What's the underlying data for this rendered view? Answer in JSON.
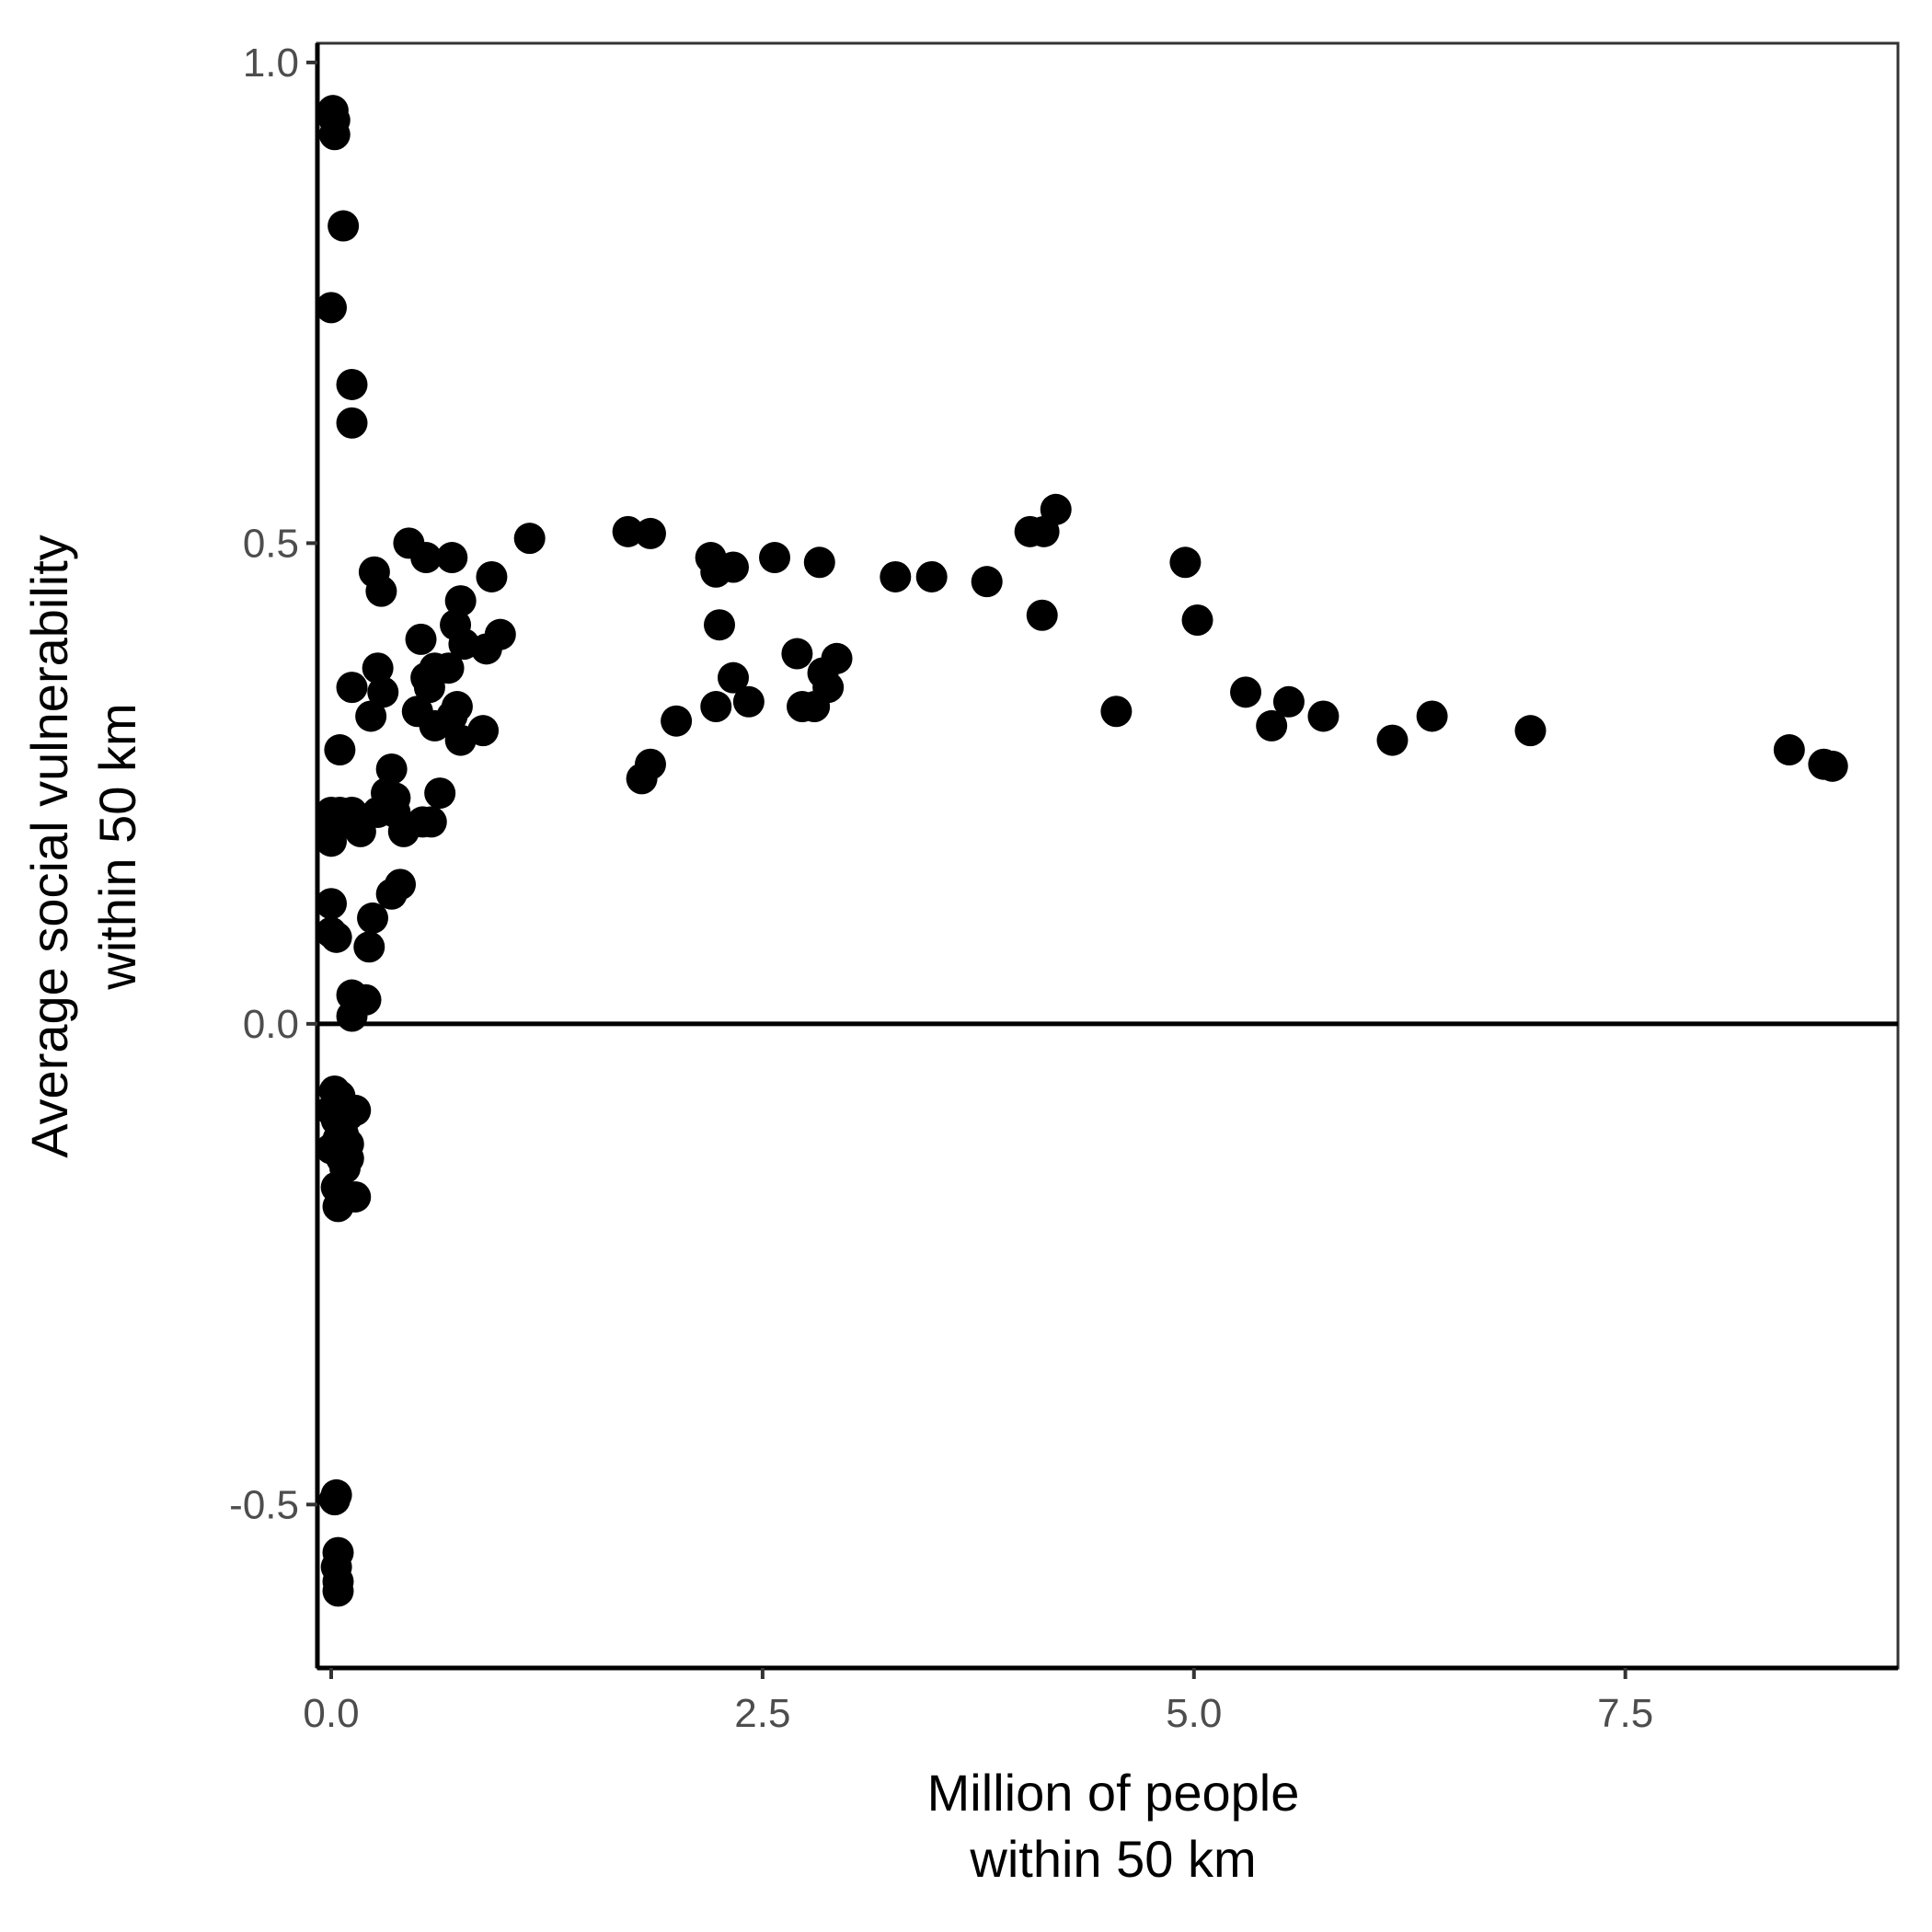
{
  "chart_data": {
    "type": "scatter",
    "title": "",
    "xlabel": [
      "Million of people",
      "within 50 km"
    ],
    "ylabel": [
      "Average social vulnerability",
      "within 50 km"
    ],
    "xlim": [
      -0.08,
      9.08
    ],
    "ylim": [
      -0.67,
      1.02
    ],
    "x_ticks": [
      0.0,
      2.5,
      5.0,
      7.5
    ],
    "x_tick_labels": [
      "0.0",
      "2.5",
      "5.0",
      "7.5"
    ],
    "y_ticks": [
      -0.5,
      0.0,
      0.5,
      1.0
    ],
    "y_tick_labels": [
      "-0.5",
      "0.0",
      "0.5",
      "1.0"
    ],
    "reference_line_y": 0.0,
    "grid": false,
    "point_color": "#000000",
    "points": [
      [
        0.01,
        0.95
      ],
      [
        0.02,
        0.94
      ],
      [
        0.02,
        0.925
      ],
      [
        0.07,
        0.83
      ],
      [
        0.0,
        0.745
      ],
      [
        0.12,
        0.665
      ],
      [
        0.12,
        0.625
      ],
      [
        0.25,
        0.47
      ],
      [
        0.29,
        0.45
      ],
      [
        0.45,
        0.5
      ],
      [
        0.55,
        0.485
      ],
      [
        0.7,
        0.485
      ],
      [
        0.93,
        0.465
      ],
      [
        1.15,
        0.505
      ],
      [
        0.75,
        0.44
      ],
      [
        0.72,
        0.415
      ],
      [
        0.98,
        0.405
      ],
      [
        0.52,
        0.4
      ],
      [
        0.77,
        0.395
      ],
      [
        0.9,
        0.39
      ],
      [
        0.27,
        0.37
      ],
      [
        0.6,
        0.37
      ],
      [
        0.68,
        0.37
      ],
      [
        0.55,
        0.36
      ],
      [
        0.12,
        0.35
      ],
      [
        0.3,
        0.345
      ],
      [
        0.57,
        0.35
      ],
      [
        0.5,
        0.325
      ],
      [
        0.23,
        0.32
      ],
      [
        0.6,
        0.31
      ],
      [
        0.7,
        0.32
      ],
      [
        0.73,
        0.33
      ],
      [
        0.88,
        0.305
      ],
      [
        0.75,
        0.295
      ],
      [
        0.05,
        0.285
      ],
      [
        0.35,
        0.265
      ],
      [
        0.32,
        0.24
      ],
      [
        0.63,
        0.24
      ],
      [
        0.37,
        0.235
      ],
      [
        0.0,
        0.22
      ],
      [
        0.05,
        0.22
      ],
      [
        0.12,
        0.22
      ],
      [
        0.27,
        0.22
      ],
      [
        0.37,
        0.22
      ],
      [
        0.0,
        0.2
      ],
      [
        0.03,
        0.205
      ],
      [
        0.06,
        0.21
      ],
      [
        0.17,
        0.2
      ],
      [
        0.42,
        0.2
      ],
      [
        0.53,
        0.21
      ],
      [
        0.58,
        0.21
      ],
      [
        0.0,
        0.19
      ],
      [
        0.0,
        0.125
      ],
      [
        0.35,
        0.135
      ],
      [
        0.4,
        0.145
      ],
      [
        0.24,
        0.11
      ],
      [
        0.0,
        0.095
      ],
      [
        0.03,
        0.09
      ],
      [
        0.22,
        0.08
      ],
      [
        0.12,
        0.03
      ],
      [
        0.2,
        0.025
      ],
      [
        0.12,
        0.008
      ],
      [
        1.72,
        0.512
      ],
      [
        1.85,
        0.51
      ],
      [
        2.2,
        0.485
      ],
      [
        2.23,
        0.47
      ],
      [
        2.33,
        0.475
      ],
      [
        2.57,
        0.485
      ],
      [
        2.83,
        0.48
      ],
      [
        2.25,
        0.415
      ],
      [
        2.33,
        0.36
      ],
      [
        2.23,
        0.33
      ],
      [
        2.42,
        0.335
      ],
      [
        2.0,
        0.315
      ],
      [
        2.7,
        0.385
      ],
      [
        2.93,
        0.38
      ],
      [
        2.85,
        0.365
      ],
      [
        2.88,
        0.35
      ],
      [
        2.73,
        0.33
      ],
      [
        2.8,
        0.33
      ],
      [
        1.85,
        0.27
      ],
      [
        1.8,
        0.255
      ],
      [
        3.27,
        0.465
      ],
      [
        3.48,
        0.465
      ],
      [
        3.8,
        0.46
      ],
      [
        4.05,
        0.512
      ],
      [
        4.13,
        0.512
      ],
      [
        4.2,
        0.535
      ],
      [
        4.12,
        0.425
      ],
      [
        4.55,
        0.325
      ],
      [
        4.95,
        0.48
      ],
      [
        5.02,
        0.42
      ],
      [
        5.3,
        0.345
      ],
      [
        5.45,
        0.31
      ],
      [
        5.55,
        0.335
      ],
      [
        5.75,
        0.32
      ],
      [
        6.15,
        0.295
      ],
      [
        6.38,
        0.32
      ],
      [
        6.95,
        0.305
      ],
      [
        8.45,
        0.285
      ],
      [
        8.65,
        0.27
      ],
      [
        8.7,
        0.268
      ],
      [
        0.0,
        -0.09
      ],
      [
        0.02,
        -0.07
      ],
      [
        0.05,
        -0.075
      ],
      [
        0.03,
        -0.1
      ],
      [
        0.1,
        -0.095
      ],
      [
        0.14,
        -0.09
      ],
      [
        0.0,
        -0.13
      ],
      [
        0.04,
        -0.12
      ],
      [
        0.07,
        -0.115
      ],
      [
        0.1,
        -0.125
      ],
      [
        0.06,
        -0.14
      ],
      [
        0.1,
        -0.14
      ],
      [
        0.08,
        -0.15
      ],
      [
        0.03,
        -0.17
      ],
      [
        0.05,
        -0.175
      ],
      [
        0.14,
        -0.18
      ],
      [
        0.04,
        -0.19
      ],
      [
        0.02,
        -0.495
      ],
      [
        0.03,
        -0.49
      ],
      [
        0.04,
        -0.55
      ],
      [
        0.03,
        -0.565
      ],
      [
        0.04,
        -0.58
      ],
      [
        0.04,
        -0.59
      ]
    ]
  }
}
